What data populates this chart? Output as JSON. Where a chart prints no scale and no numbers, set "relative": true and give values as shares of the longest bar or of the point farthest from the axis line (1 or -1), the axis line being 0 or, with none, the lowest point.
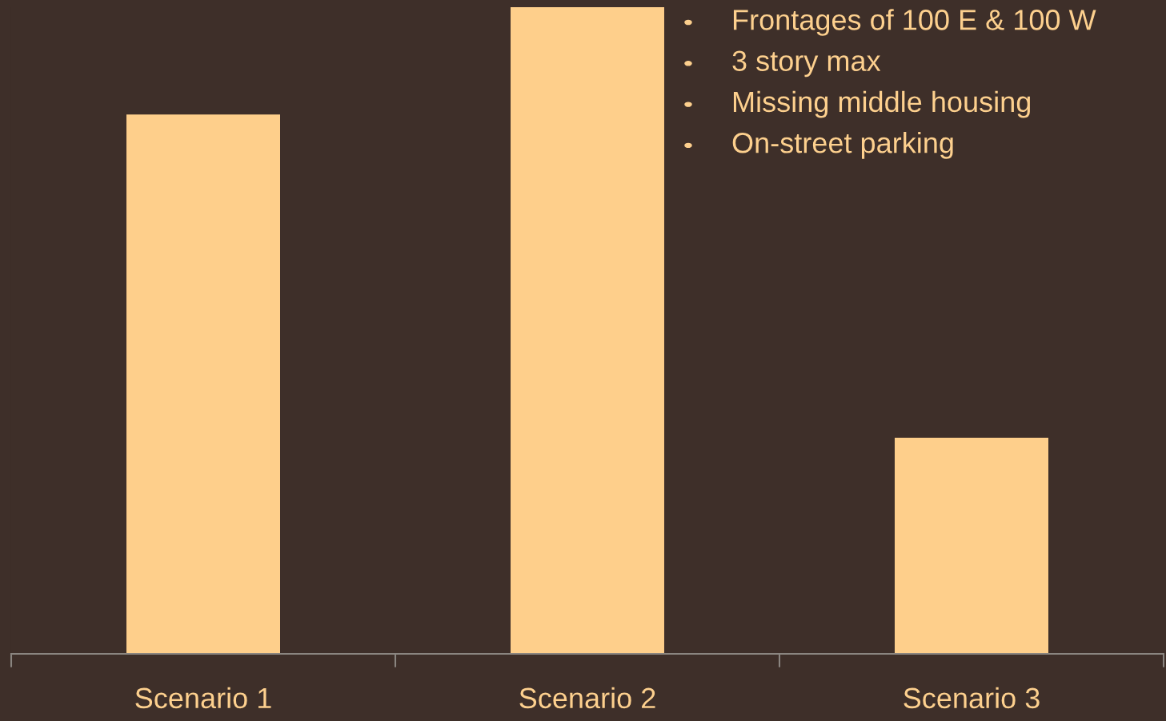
{
  "chart_data": {
    "type": "bar",
    "relative": true,
    "categories": [
      "Scenario 1",
      "Scenario 2",
      "Scenario 3"
    ],
    "values": [
      0.834,
      1,
      0.334
    ],
    "color": "#fecf8b",
    "annotations": [
      "Frontages of 100 E & 100 W",
      "3 story max",
      "Missing middle housing",
      "On-street parking"
    ]
  }
}
